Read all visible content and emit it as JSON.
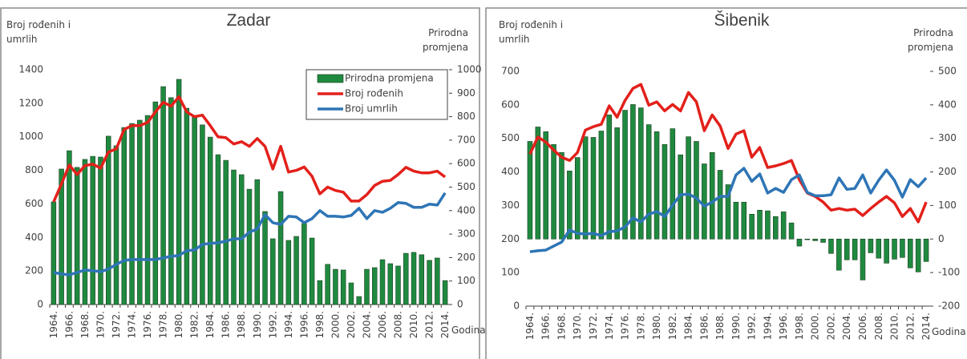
{
  "chart_data": [
    {
      "type": "combo",
      "title": "Zadar",
      "y_label": "Broj rođenih i umrlih",
      "y2_label": "Prirodna promjena",
      "x_label": "Godina",
      "categories": [
        "1964.",
        null,
        "1966.",
        null,
        "1968.",
        null,
        "1970.",
        null,
        "1972.",
        null,
        "1974.",
        null,
        "1976.",
        null,
        "1978.",
        null,
        "1980.",
        null,
        "1982.",
        null,
        "1984.",
        null,
        "1986.",
        null,
        "1988.",
        null,
        "1990.",
        null,
        "1992.",
        null,
        "1994.",
        null,
        "1996.",
        null,
        "1998.",
        null,
        "2000.",
        null,
        "2002.",
        null,
        "2004.",
        null,
        "2006.",
        null,
        "2008.",
        null,
        "2010.",
        null,
        "2012.",
        null,
        "2014."
      ],
      "ylim": [
        0,
        1400
      ],
      "yticks": [
        0,
        200,
        400,
        600,
        800,
        1000,
        1200,
        1400
      ],
      "y2lim": [
        0,
        1000
      ],
      "y2ticks": [
        0,
        100,
        200,
        300,
        400,
        500,
        600,
        700,
        800,
        900,
        1000
      ],
      "legend": "top-right",
      "series": [
        {
          "name": "Prirodna promjena",
          "type": "bar",
          "axis": "y2",
          "color": "#1f8a3f",
          "values": [
            437,
            577,
            655,
            584,
            618,
            631,
            628,
            717,
            676,
            754,
            771,
            785,
            805,
            863,
            928,
            881,
            959,
            836,
            802,
            765,
            713,
            638,
            614,
            573,
            553,
            491,
            532,
            396,
            280,
            481,
            273,
            290,
            345,
            283,
            102,
            171,
            150,
            147,
            92,
            34,
            150,
            157,
            191,
            174,
            164,
            218,
            222,
            212,
            188,
            198,
            102
          ]
        },
        {
          "name": "Broj rođenih",
          "type": "line",
          "color": "#e3201b",
          "values": [
            612,
            718,
            832,
            775,
            828,
            837,
            813,
            909,
            928,
            1043,
            1067,
            1067,
            1086,
            1148,
            1206,
            1182,
            1239,
            1148,
            1120,
            1129,
            1067,
            1000,
            995,
            957,
            971,
            943,
            990,
            943,
            808,
            943,
            790,
            800,
            820,
            765,
            660,
            700,
            680,
            670,
            617,
            617,
            655,
            710,
            735,
            740,
            775,
            818,
            795,
            785,
            785,
            795,
            760
          ]
        },
        {
          "name": "Broj umrlih",
          "type": "line",
          "color": "#2e75b6",
          "values": [
            191,
            182,
            177,
            191,
            206,
            201,
            196,
            211,
            239,
            263,
            268,
            268,
            268,
            268,
            278,
            287,
            292,
            321,
            325,
            359,
            364,
            368,
            378,
            392,
            392,
            431,
            450,
            536,
            488,
            478,
            526,
            522,
            488,
            512,
            560,
            526,
            526,
            522,
            531,
            574,
            512,
            560,
            550,
            574,
            608,
            603,
            579,
            579,
            598,
            593,
            665
          ]
        }
      ]
    },
    {
      "type": "combo",
      "title": "Šibenik",
      "y_label": "Broj rođenih i umrlih",
      "y2_label": "Prirodna promjena",
      "x_label": "Godina",
      "categories": [
        "1964.",
        null,
        "1966.",
        null,
        "1968.",
        null,
        "1970.",
        null,
        "1972.",
        null,
        "1974.",
        null,
        "1976.",
        null,
        "1978.",
        null,
        "1980.",
        null,
        "1982.",
        null,
        "1984.",
        null,
        "1986.",
        null,
        "1988.",
        null,
        "1990.",
        null,
        "1992.",
        null,
        "1994.",
        null,
        "1996.",
        null,
        "1998.",
        null,
        "2000.",
        null,
        "2002.",
        null,
        "2004.",
        null,
        "2006.",
        null,
        "2008.",
        null,
        "2010.",
        null,
        "2012.",
        null,
        "2014."
      ],
      "ylim": [
        0,
        700
      ],
      "yticks": [
        0,
        100,
        200,
        300,
        400,
        500,
        600,
        700
      ],
      "y2lim": [
        -200,
        500
      ],
      "y2ticks": [
        -200,
        -100,
        0,
        100,
        200,
        300,
        400,
        500
      ],
      "series": [
        {
          "type": "bar",
          "axis": "y2",
          "color": "#1f8a3f",
          "values": [
            291,
            334,
            320,
            282,
            258,
            203,
            243,
            305,
            303,
            322,
            370,
            332,
            384,
            401,
            391,
            341,
            320,
            282,
            329,
            251,
            305,
            291,
            224,
            258,
            205,
            162,
            110,
            110,
            74,
            86,
            84,
            67,
            81,
            48,
            -21,
            -2,
            -5,
            -10,
            -43,
            -93,
            -62,
            -62,
            -122,
            -41,
            -57,
            -72,
            -60,
            -55,
            -86,
            -98,
            -67
          ]
        },
        {
          "type": "line",
          "color": "#e3201b",
          "values": [
            453,
            504,
            489,
            465,
            444,
            434,
            458,
            525,
            535,
            542,
            597,
            563,
            613,
            649,
            661,
            599,
            609,
            582,
            601,
            582,
            637,
            609,
            523,
            570,
            537,
            470,
            513,
            523,
            444,
            473,
            413,
            418,
            425,
            434,
            377,
            337,
            327,
            310,
            286,
            291,
            286,
            289,
            270,
            291,
            310,
            327,
            308,
            267,
            291,
            251,
            310
          ]
        },
        {
          "type": "line",
          "color": "#2e75b6",
          "values": [
            162,
            165,
            167,
            179,
            191,
            227,
            217,
            215,
            217,
            210,
            222,
            224,
            236,
            263,
            251,
            274,
            282,
            267,
            301,
            332,
            334,
            322,
            298,
            310,
            327,
            327,
            391,
            411,
            372,
            394,
            337,
            351,
            339,
            377,
            391,
            339,
            329,
            329,
            332,
            382,
            348,
            351,
            391,
            337,
            375,
            406,
            375,
            325,
            377,
            356,
            382
          ]
        }
      ]
    }
  ]
}
